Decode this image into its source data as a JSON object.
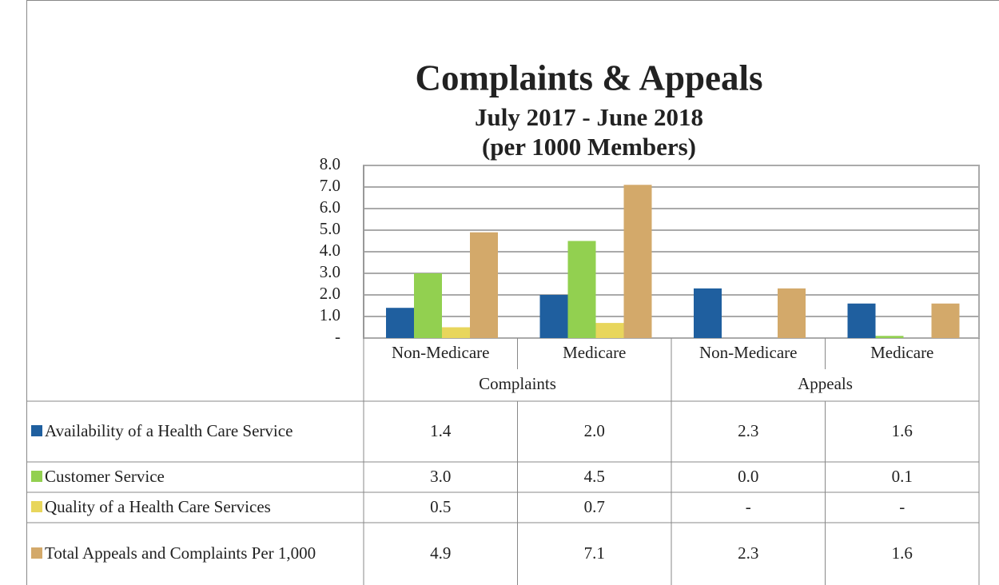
{
  "chart_data": {
    "type": "bar",
    "title": "Complaints & Appeals",
    "subtitle": [
      "July 2017 - June 2018",
      "(per 1000 Members)"
    ],
    "category_groups": [
      {
        "name": "Complaints",
        "categories": [
          "Non-Medicare",
          "Medicare"
        ]
      },
      {
        "name": "Appeals",
        "categories": [
          "Non-Medicare",
          "Medicare"
        ]
      }
    ],
    "series": [
      {
        "name": "Availability of a Health Care Service",
        "color": "#1f5f9f",
        "values": [
          1.4,
          2.0,
          2.3,
          1.6
        ],
        "value_labels": [
          "1.4",
          "2.0",
          "2.3",
          "1.6"
        ]
      },
      {
        "name": "Customer Service",
        "color": "#92d050",
        "values": [
          3.0,
          4.5,
          0.0,
          0.1
        ],
        "value_labels": [
          "3.0",
          "4.5",
          "0.0",
          "0.1"
        ]
      },
      {
        "name": "Quality of a Health Care Services",
        "color": "#e8d65c",
        "values": [
          0.5,
          0.7,
          null,
          null
        ],
        "value_labels": [
          "0.5",
          "0.7",
          "-",
          "-"
        ]
      },
      {
        "name": "Total Appeals and Complaints Per 1,000",
        "color": "#d3a96a",
        "values": [
          4.9,
          7.1,
          2.3,
          1.6
        ],
        "value_labels": [
          "4.9",
          "7.1",
          "2.3",
          "1.6"
        ]
      }
    ],
    "ylim": [
      0,
      8
    ],
    "yticks": [
      {
        "value": 0,
        "label": "-"
      },
      {
        "value": 1,
        "label": "1.0"
      },
      {
        "value": 2,
        "label": "2.0"
      },
      {
        "value": 3,
        "label": "3.0"
      },
      {
        "value": 4,
        "label": "4.0"
      },
      {
        "value": 5,
        "label": "5.0"
      },
      {
        "value": 6,
        "label": "6.0"
      },
      {
        "value": 7,
        "label": "7.0"
      },
      {
        "value": 8,
        "label": "8.0"
      }
    ],
    "grid": true
  }
}
